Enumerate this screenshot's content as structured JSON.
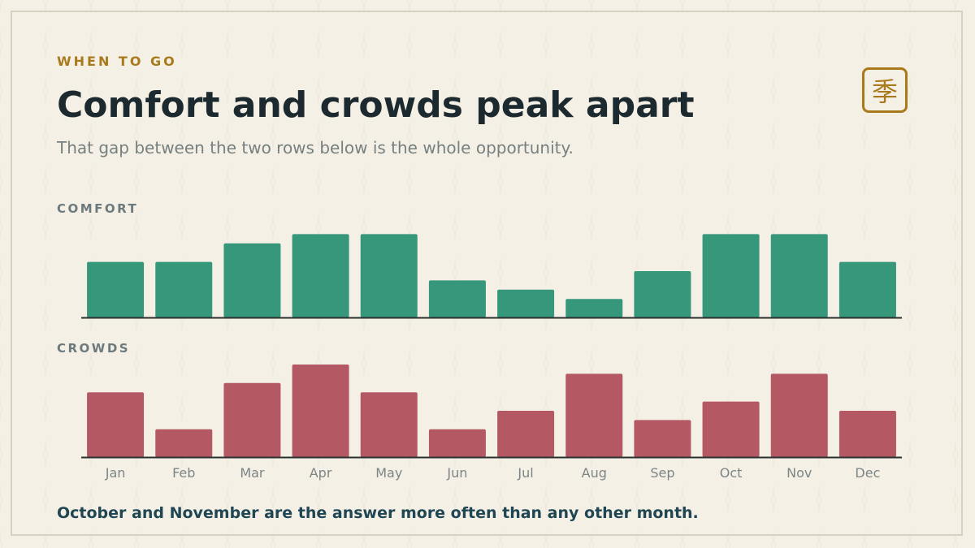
{
  "eyebrow": "WHEN TO GO",
  "title": "Comfort and crowds peak apart",
  "subtitle": "That gap between the two rows below is the whole opportunity.",
  "seal_glyph": "季",
  "footer": "October and November are the answer more often than any other month.",
  "colors": {
    "comfort": "#37977a",
    "crowds": "#b45863",
    "baseline": "#2a2f30",
    "tick_label": "#7c8585"
  },
  "chart_data": {
    "type": "bar",
    "categories": [
      "Jan",
      "Feb",
      "Mar",
      "Apr",
      "May",
      "Jun",
      "Jul",
      "Aug",
      "Sep",
      "Oct",
      "Nov",
      "Dec"
    ],
    "series": [
      {
        "name": "COMFORT",
        "values": [
          6,
          6,
          8,
          9,
          9,
          4,
          3,
          2,
          5,
          9,
          9,
          6
        ]
      },
      {
        "name": "CROWDS",
        "values": [
          7,
          3,
          8,
          10,
          7,
          3,
          5,
          9,
          4,
          6,
          9,
          5
        ]
      }
    ],
    "ylim": [
      0,
      10
    ],
    "grid": false,
    "legend": "none"
  }
}
